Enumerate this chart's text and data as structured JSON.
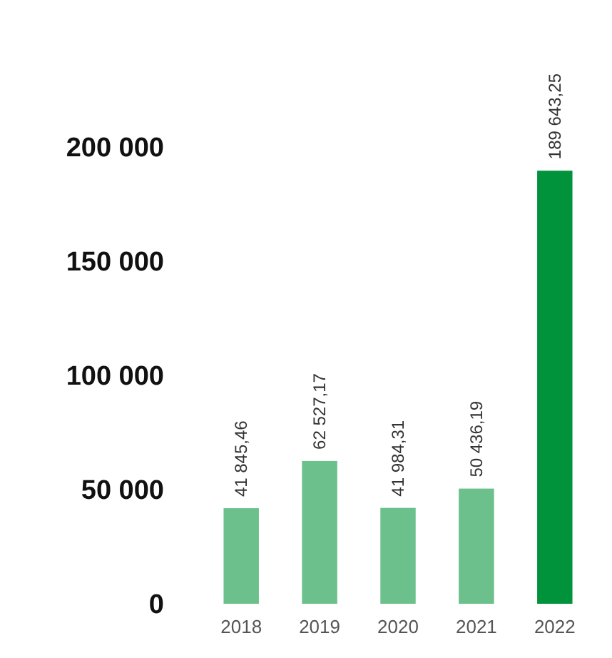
{
  "chart_data": {
    "type": "bar",
    "categories": [
      "2018",
      "2019",
      "2020",
      "2021",
      "2022"
    ],
    "values": [
      41845.46,
      62527.17,
      41984.31,
      50436.19,
      189643.25
    ],
    "colors": [
      "#6cc08b",
      "#6cc08b",
      "#6cc08b",
      "#6cc08b",
      "#00933c"
    ],
    "value_labels": [
      "41 845,46",
      "62 527,17",
      "41 984,31",
      "50 436,19",
      "189 643,25"
    ],
    "ylim": [
      0,
      200000
    ],
    "yticks": [
      {
        "value": 0,
        "label": "0"
      },
      {
        "value": 50000,
        "label": "50 000"
      },
      {
        "value": 100000,
        "label": "100 000"
      },
      {
        "value": 150000,
        "label": "150 000"
      },
      {
        "value": 200000,
        "label": "200 000"
      }
    ],
    "grid": false
  }
}
